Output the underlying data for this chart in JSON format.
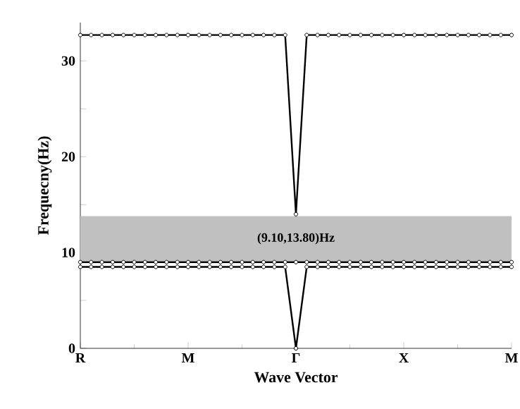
{
  "chart_data": {
    "type": "line",
    "xlabel": "Wave Vector",
    "ylabel": "Frequecny(Hz)",
    "ylim": [
      0,
      34
    ],
    "yticks": [
      0,
      {
        "value": 5,
        "label": null
      },
      10,
      {
        "value": 15,
        "label": null
      },
      20,
      {
        "value": 25,
        "label": null
      },
      30
    ],
    "marker": "circle",
    "line_style": "solid",
    "grid": false,
    "bands": [
      {
        "axis": "y",
        "from": 9.1,
        "to": 13.8,
        "label": "(9.10,13.80)Hz",
        "color": "#c0c0c0"
      }
    ],
    "categories": [
      "R",
      null,
      null,
      null,
      null,
      null,
      null,
      null,
      null,
      null,
      "M",
      null,
      null,
      null,
      null,
      null,
      null,
      null,
      null,
      null,
      "Γ",
      null,
      null,
      null,
      null,
      null,
      null,
      null,
      null,
      null,
      "X",
      null,
      null,
      null,
      null,
      null,
      null,
      null,
      null,
      null,
      "M"
    ],
    "series": [
      {
        "color": "#000000",
        "values": [
          8.5,
          8.5,
          8.5,
          8.5,
          8.5,
          8.5,
          8.5,
          8.5,
          8.5,
          8.5,
          8.5,
          8.5,
          8.5,
          8.5,
          8.5,
          8.5,
          8.5,
          8.5,
          8.5,
          8.5,
          0,
          8.5,
          8.5,
          8.5,
          8.5,
          8.5,
          8.5,
          8.5,
          8.5,
          8.5,
          8.5,
          8.5,
          8.5,
          8.5,
          8.5,
          8.5,
          8.5,
          8.5,
          8.5,
          8.5,
          8.5
        ]
      },
      {
        "color": "#000000",
        "values": [
          9.0,
          9.0,
          9.0,
          9.0,
          9.0,
          9.0,
          9.0,
          9.0,
          9.0,
          9.0,
          9.0,
          9.0,
          9.0,
          9.0,
          9.0,
          9.0,
          9.0,
          9.0,
          9.0,
          9.0,
          9.0,
          9.0,
          9.0,
          9.0,
          9.0,
          9.0,
          9.0,
          9.0,
          9.0,
          9.0,
          9.0,
          9.0,
          9.0,
          9.0,
          9.0,
          9.0,
          9.0,
          9.0,
          9.0,
          9.0,
          9.0
        ]
      },
      {
        "color": "#000000",
        "values": [
          32.7,
          32.7,
          32.7,
          32.7,
          32.7,
          32.7,
          32.7,
          32.7,
          32.7,
          32.7,
          32.7,
          32.7,
          32.7,
          32.7,
          32.7,
          32.7,
          32.7,
          32.7,
          32.7,
          32.7,
          14,
          32.7,
          32.7,
          32.7,
          32.7,
          32.7,
          32.7,
          32.7,
          32.7,
          32.7,
          32.7,
          32.7,
          32.7,
          32.7,
          32.7,
          32.7,
          32.7,
          32.7,
          32.7,
          32.7,
          32.7
        ]
      }
    ]
  }
}
